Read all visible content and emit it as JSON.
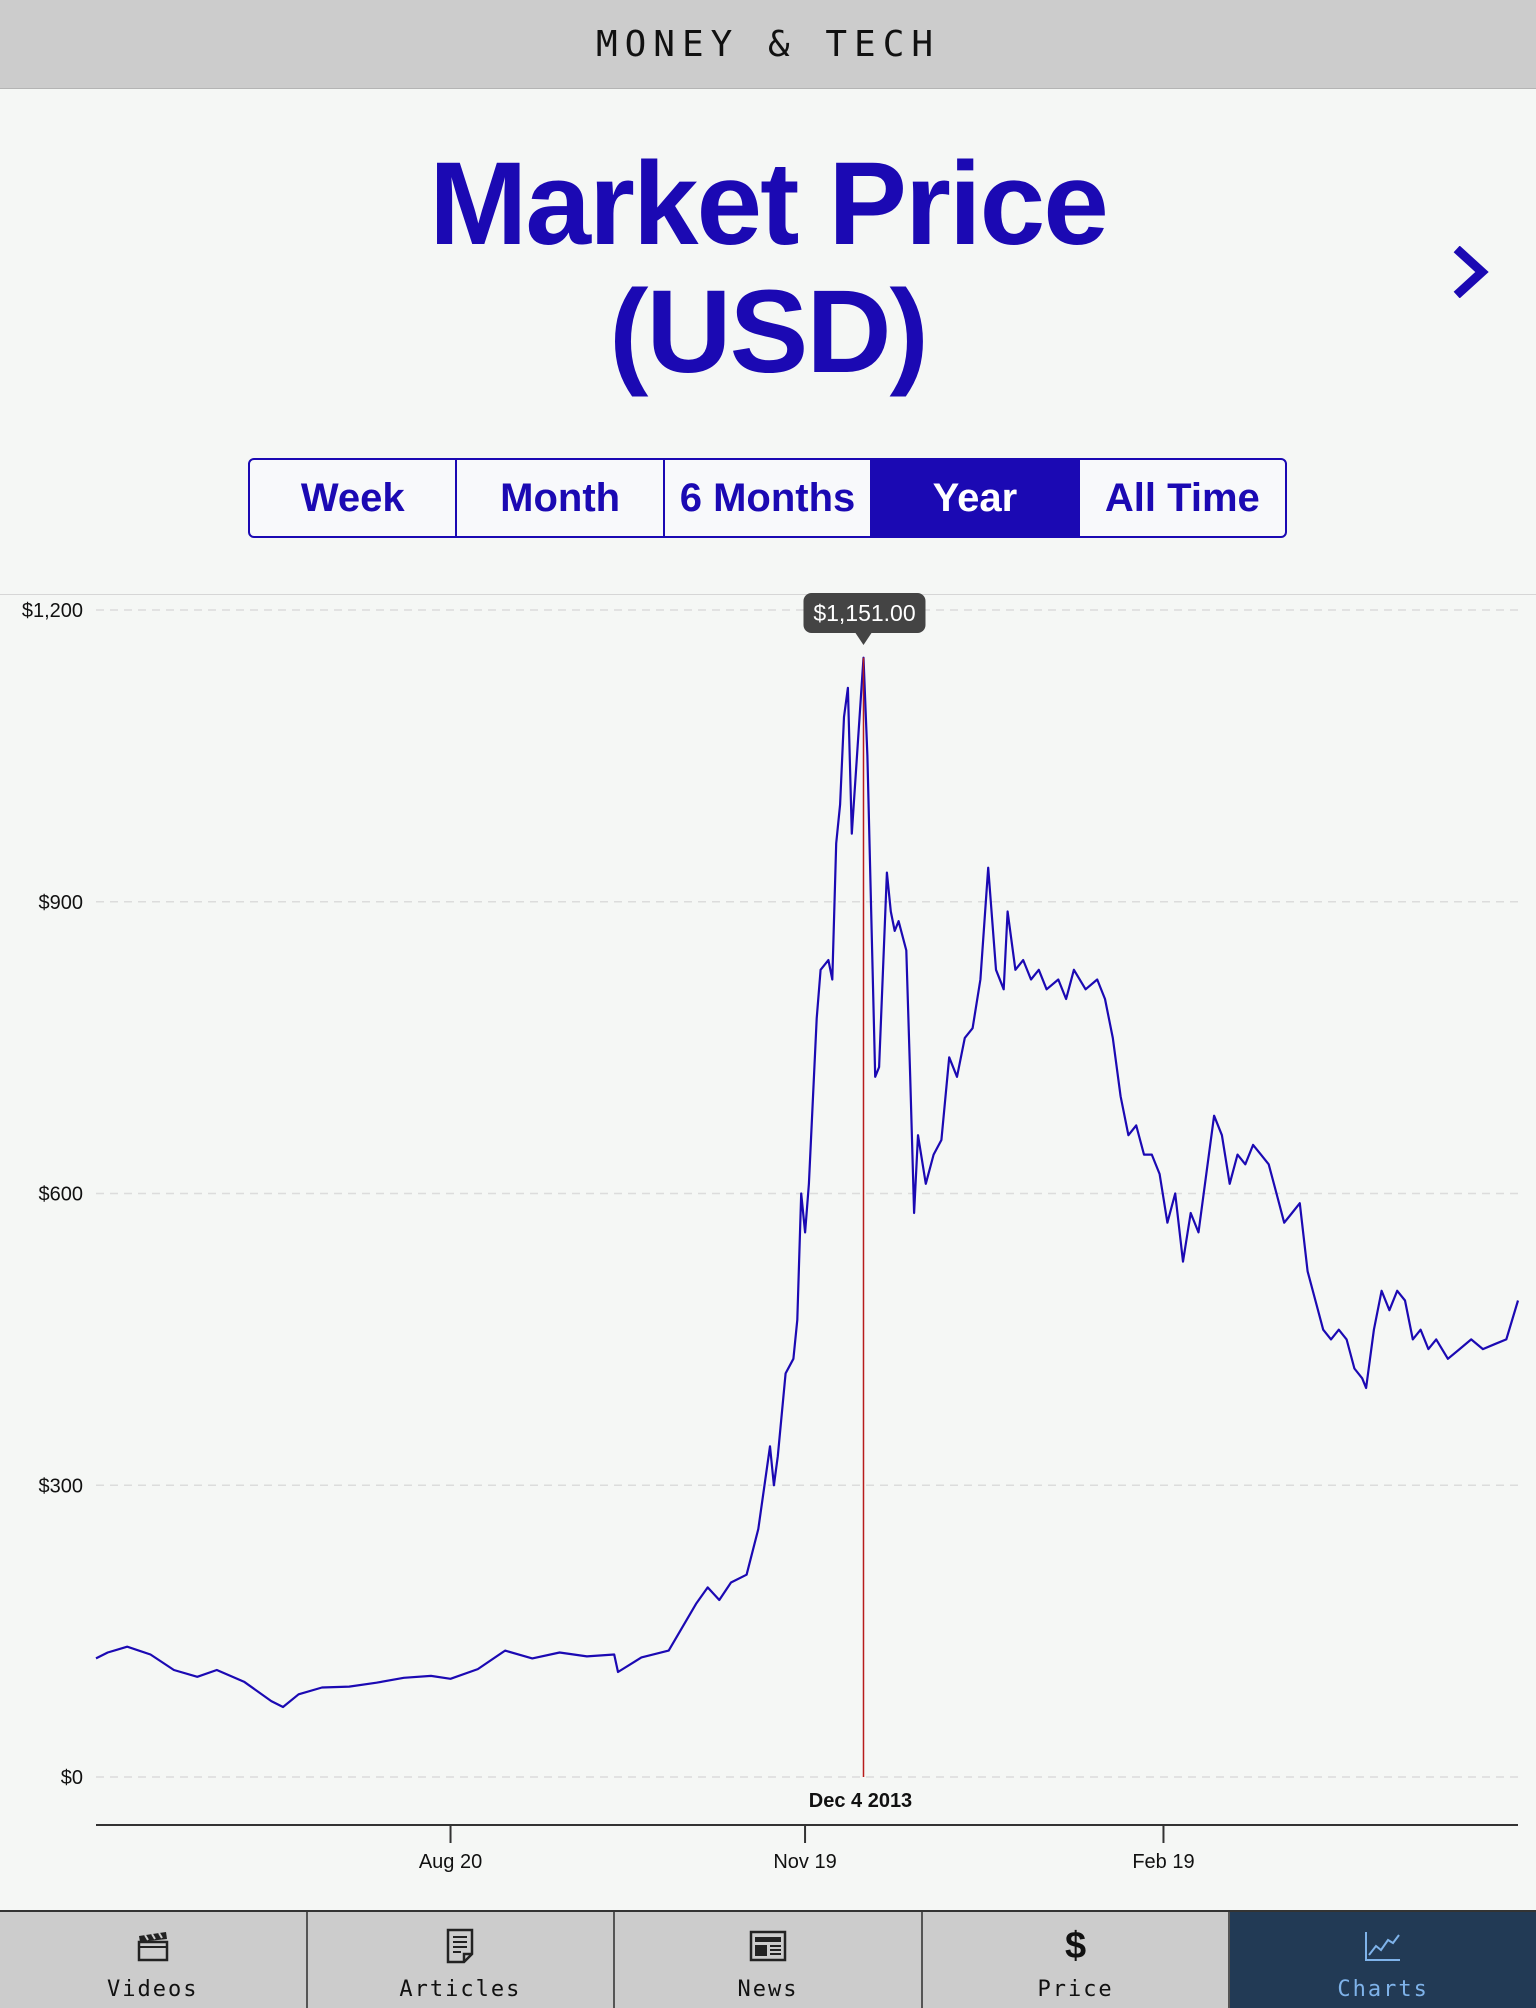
{
  "header": {
    "title": "MONEY & TECH"
  },
  "page": {
    "title_line1": "Market Price",
    "title_line2": "(USD)"
  },
  "nav": {
    "next_icon": "chevron-right-icon"
  },
  "range_tabs": [
    {
      "label": "Week",
      "active": false
    },
    {
      "label": "Month",
      "active": false
    },
    {
      "label": "6 Months",
      "active": false
    },
    {
      "label": "Year",
      "active": true
    },
    {
      "label": "All Time",
      "active": false
    }
  ],
  "tabbar": [
    {
      "label": "Videos",
      "icon": "clapperboard-icon",
      "active": false
    },
    {
      "label": "Articles",
      "icon": "document-icon",
      "active": false
    },
    {
      "label": "News",
      "icon": "newspaper-icon",
      "active": false
    },
    {
      "label": "Price",
      "icon": "dollar-icon",
      "active": false
    },
    {
      "label": "Charts",
      "icon": "chart-icon",
      "active": true
    }
  ],
  "colors": {
    "accent": "#1b09b3",
    "marker": "#b71c1c",
    "tooltip_bg": "#444444",
    "active_tab_bg": "#223a55"
  },
  "chart_data": {
    "type": "line",
    "title": "Market Price (USD)",
    "ylim": [
      0,
      1200
    ],
    "y_ticks": [
      {
        "value": 0,
        "label": "$0"
      },
      {
        "value": 300,
        "label": "$300"
      },
      {
        "value": 600,
        "label": "$600"
      },
      {
        "value": 900,
        "label": "$900"
      },
      {
        "value": 1200,
        "label": "$1,200"
      }
    ],
    "x_start": "2013-05-21",
    "x_end": "2014-05-21",
    "x_ticks": [
      {
        "date": "2013-08-20",
        "label": "Aug 20"
      },
      {
        "date": "2013-11-19",
        "label": "Nov 19"
      },
      {
        "date": "2014-02-19",
        "label": "Feb 19"
      }
    ],
    "grid": true,
    "highlight": {
      "date": "2013-12-04",
      "label": "Dec 4 2013",
      "value_label": "$1,151.00",
      "value": 1151
    },
    "series": [
      {
        "values": [
          [
            "2013-05-21",
            122
          ],
          [
            "2013-05-24",
            128
          ],
          [
            "2013-05-29",
            134
          ],
          [
            "2013-06-04",
            126
          ],
          [
            "2013-06-10",
            110
          ],
          [
            "2013-06-16",
            103
          ],
          [
            "2013-06-21",
            110
          ],
          [
            "2013-06-28",
            98
          ],
          [
            "2013-07-05",
            78
          ],
          [
            "2013-07-08",
            72
          ],
          [
            "2013-07-12",
            85
          ],
          [
            "2013-07-18",
            92
          ],
          [
            "2013-07-25",
            93
          ],
          [
            "2013-08-01",
            97
          ],
          [
            "2013-08-08",
            102
          ],
          [
            "2013-08-15",
            104
          ],
          [
            "2013-08-20",
            101
          ],
          [
            "2013-08-27",
            111
          ],
          [
            "2013-09-03",
            130
          ],
          [
            "2013-09-10",
            122
          ],
          [
            "2013-09-17",
            128
          ],
          [
            "2013-09-24",
            124
          ],
          [
            "2013-10-01",
            126
          ],
          [
            "2013-10-02",
            108
          ],
          [
            "2013-10-08",
            123
          ],
          [
            "2013-10-15",
            130
          ],
          [
            "2013-10-22",
            178
          ],
          [
            "2013-10-25",
            195
          ],
          [
            "2013-10-28",
            182
          ],
          [
            "2013-10-31",
            200
          ],
          [
            "2013-11-04",
            208
          ],
          [
            "2013-11-07",
            255
          ],
          [
            "2013-11-10",
            340
          ],
          [
            "2013-11-11",
            300
          ],
          [
            "2013-11-12",
            330
          ],
          [
            "2013-11-14",
            415
          ],
          [
            "2013-11-16",
            430
          ],
          [
            "2013-11-17",
            470
          ],
          [
            "2013-11-18",
            600
          ],
          [
            "2013-11-19",
            560
          ],
          [
            "2013-11-20",
            610
          ],
          [
            "2013-11-22",
            780
          ],
          [
            "2013-11-23",
            830
          ],
          [
            "2013-11-25",
            840
          ],
          [
            "2013-11-26",
            820
          ],
          [
            "2013-11-27",
            960
          ],
          [
            "2013-11-28",
            1000
          ],
          [
            "2013-11-29",
            1090
          ],
          [
            "2013-11-30",
            1120
          ],
          [
            "2013-12-01",
            970
          ],
          [
            "2013-12-02",
            1030
          ],
          [
            "2013-12-04",
            1151
          ],
          [
            "2013-12-05",
            1050
          ],
          [
            "2013-12-07",
            720
          ],
          [
            "2013-12-08",
            730
          ],
          [
            "2013-12-10",
            930
          ],
          [
            "2013-12-11",
            890
          ],
          [
            "2013-12-12",
            870
          ],
          [
            "2013-12-13",
            880
          ],
          [
            "2013-12-15",
            850
          ],
          [
            "2013-12-16",
            720
          ],
          [
            "2013-12-17",
            580
          ],
          [
            "2013-12-18",
            660
          ],
          [
            "2013-12-20",
            610
          ],
          [
            "2013-12-22",
            640
          ],
          [
            "2013-12-24",
            655
          ],
          [
            "2013-12-26",
            740
          ],
          [
            "2013-12-28",
            720
          ],
          [
            "2013-12-30",
            760
          ],
          [
            "2014-01-01",
            770
          ],
          [
            "2014-01-03",
            820
          ],
          [
            "2014-01-05",
            935
          ],
          [
            "2014-01-07",
            830
          ],
          [
            "2014-01-09",
            810
          ],
          [
            "2014-01-10",
            890
          ],
          [
            "2014-01-12",
            830
          ],
          [
            "2014-01-14",
            840
          ],
          [
            "2014-01-16",
            820
          ],
          [
            "2014-01-18",
            830
          ],
          [
            "2014-01-20",
            810
          ],
          [
            "2014-01-23",
            820
          ],
          [
            "2014-01-25",
            800
          ],
          [
            "2014-01-27",
            830
          ],
          [
            "2014-01-30",
            810
          ],
          [
            "2014-02-02",
            820
          ],
          [
            "2014-02-04",
            800
          ],
          [
            "2014-02-06",
            760
          ],
          [
            "2014-02-08",
            700
          ],
          [
            "2014-02-10",
            660
          ],
          [
            "2014-02-12",
            670
          ],
          [
            "2014-02-14",
            640
          ],
          [
            "2014-02-16",
            640
          ],
          [
            "2014-02-18",
            620
          ],
          [
            "2014-02-20",
            570
          ],
          [
            "2014-02-22",
            600
          ],
          [
            "2014-02-24",
            530
          ],
          [
            "2014-02-26",
            580
          ],
          [
            "2014-02-28",
            560
          ],
          [
            "2014-03-02",
            620
          ],
          [
            "2014-03-04",
            680
          ],
          [
            "2014-03-06",
            660
          ],
          [
            "2014-03-08",
            610
          ],
          [
            "2014-03-10",
            640
          ],
          [
            "2014-03-12",
            630
          ],
          [
            "2014-03-14",
            650
          ],
          [
            "2014-03-16",
            640
          ],
          [
            "2014-03-18",
            630
          ],
          [
            "2014-03-20",
            600
          ],
          [
            "2014-03-22",
            570
          ],
          [
            "2014-03-24",
            580
          ],
          [
            "2014-03-26",
            590
          ],
          [
            "2014-03-28",
            520
          ],
          [
            "2014-03-30",
            490
          ],
          [
            "2014-04-01",
            460
          ],
          [
            "2014-04-03",
            450
          ],
          [
            "2014-04-05",
            460
          ],
          [
            "2014-04-07",
            450
          ],
          [
            "2014-04-09",
            420
          ],
          [
            "2014-04-11",
            410
          ],
          [
            "2014-04-12",
            400
          ],
          [
            "2014-04-14",
            460
          ],
          [
            "2014-04-16",
            500
          ],
          [
            "2014-04-18",
            480
          ],
          [
            "2014-04-20",
            500
          ],
          [
            "2014-04-22",
            490
          ],
          [
            "2014-04-24",
            450
          ],
          [
            "2014-04-26",
            460
          ],
          [
            "2014-04-28",
            440
          ],
          [
            "2014-04-30",
            450
          ],
          [
            "2014-05-03",
            430
          ],
          [
            "2014-05-06",
            440
          ],
          [
            "2014-05-09",
            450
          ],
          [
            "2014-05-12",
            440
          ],
          [
            "2014-05-15",
            445
          ],
          [
            "2014-05-18",
            450
          ],
          [
            "2014-05-21",
            490
          ]
        ]
      }
    ]
  }
}
